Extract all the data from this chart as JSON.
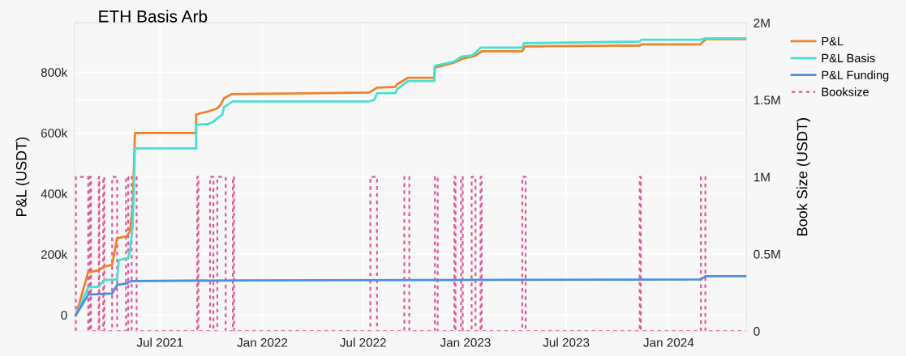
{
  "chart_data": {
    "type": "line",
    "title": "ETH Basis Arb",
    "ylabel": "P&L (USDT)",
    "y2label": "Book Size (USDT)",
    "xlim": [
      "2021-01-28",
      "2024-05-20"
    ],
    "xticks": [
      {
        "value": "2021-07-01",
        "label": "Jul 2021"
      },
      {
        "value": "2022-01-01",
        "label": "Jan 2022"
      },
      {
        "value": "2022-07-01",
        "label": "Jul 2022"
      },
      {
        "value": "2023-01-01",
        "label": "Jan 2023"
      },
      {
        "value": "2023-07-01",
        "label": "Jul 2023"
      },
      {
        "value": "2024-01-01",
        "label": "Jan 2024"
      }
    ],
    "ylim": [
      -53000,
      963000
    ],
    "yticks": [
      {
        "value": 0,
        "label": "0"
      },
      {
        "value": 200000,
        "label": "200k"
      },
      {
        "value": 400000,
        "label": "400k"
      },
      {
        "value": 600000,
        "label": "600k"
      },
      {
        "value": 800000,
        "label": "800k"
      }
    ],
    "y2lim": [
      0,
      2000000
    ],
    "y2ticks": [
      {
        "value": 0,
        "label": "0"
      },
      {
        "value": 500000,
        "label": "0.5M"
      },
      {
        "value": 1000000,
        "label": "1M"
      },
      {
        "value": 1500000,
        "label": "1.5M"
      },
      {
        "value": 2000000,
        "label": "2M"
      }
    ],
    "grid": true,
    "legend": "top right",
    "marker": "none",
    "series": [
      {
        "name": "P&L",
        "color": "#f0812a",
        "line_style": "solid",
        "x": [
          "2021-01-31",
          "2021-02-22",
          "2021-03-13",
          "2021-03-23",
          "2021-04-06",
          "2021-04-15",
          "2021-05-02",
          "2021-05-08",
          "2021-05-13",
          "2021-05-17",
          "2021-09-04",
          "2021-09-04",
          "2021-09-28",
          "2021-10-11",
          "2021-10-18",
          "2021-10-24",
          "2021-11-07",
          "2022-07-12",
          "2022-07-26",
          "2022-08-28",
          "2022-08-31",
          "2022-09-20",
          "2022-11-06",
          "2022-11-07",
          "2022-12-12",
          "2022-12-27",
          "2023-01-12",
          "2023-01-19",
          "2023-01-30",
          "2023-04-13",
          "2023-04-18",
          "2023-11-10",
          "2023-11-13",
          "2024-02-27",
          "2024-03-08",
          "2024-05-18"
        ],
        "values": [
          0,
          141000,
          147000,
          160000,
          165000,
          253000,
          259000,
          275000,
          357000,
          600000,
          600000,
          661000,
          672000,
          680000,
          693000,
          714000,
          728000,
          733000,
          749000,
          752000,
          760000,
          782000,
          782000,
          815000,
          832000,
          845000,
          851000,
          855000,
          869000,
          869000,
          885000,
          888000,
          892000,
          892000,
          909000,
          909000
        ]
      },
      {
        "name": "P&L Basis",
        "color": "#48e0d0",
        "line_style": "solid",
        "x": [
          "2021-01-31",
          "2021-02-22",
          "2021-03-13",
          "2021-03-23",
          "2021-04-15",
          "2021-04-18",
          "2021-05-05",
          "2021-05-08",
          "2021-05-13",
          "2021-05-17",
          "2021-09-04",
          "2021-09-04",
          "2021-09-25",
          "2021-10-05",
          "2021-10-14",
          "2021-10-21",
          "2021-10-24",
          "2021-11-09",
          "2022-07-12",
          "2022-07-21",
          "2022-07-26",
          "2022-08-28",
          "2022-08-31",
          "2022-09-20",
          "2022-11-06",
          "2022-11-07",
          "2022-12-12",
          "2022-12-24",
          "2023-01-12",
          "2023-01-19",
          "2023-01-28",
          "2023-04-13",
          "2023-04-16",
          "2023-11-10",
          "2023-11-13",
          "2024-02-27",
          "2024-03-08",
          "2024-05-18"
        ],
        "values": [
          0,
          91000,
          93000,
          115000,
          117000,
          181000,
          187000,
          213000,
          291000,
          549000,
          549000,
          627000,
          629000,
          637000,
          651000,
          661000,
          685000,
          704000,
          704000,
          709000,
          731000,
          731000,
          744000,
          771000,
          771000,
          821000,
          835000,
          851000,
          855000,
          864000,
          881000,
          881000,
          896000,
          901000,
          907000,
          907000,
          912000,
          912000
        ]
      },
      {
        "name": "P&L Funding",
        "color": "#4a90e2",
        "line_style": "solid",
        "x": [
          "2021-01-31",
          "2021-02-22",
          "2021-04-06",
          "2021-04-15",
          "2021-05-02",
          "2021-05-11",
          "2021-11-09",
          "2024-02-27",
          "2024-03-08",
          "2024-05-18"
        ],
        "values": [
          0,
          67000,
          71000,
          99000,
          104000,
          112000,
          114000,
          117000,
          128000,
          128000
        ]
      },
      {
        "name": "Booksize",
        "color": "#e05a9a",
        "line_style": "dotted",
        "axis": "y2",
        "x": [
          "2021-01-31",
          "2021-01-31",
          "2021-02-22",
          "2021-02-22",
          "2021-02-25",
          "2021-02-25",
          "2021-02-27",
          "2021-02-27",
          "2021-03-13",
          "2021-03-13",
          "2021-03-14",
          "2021-03-14",
          "2021-03-21",
          "2021-03-21",
          "2021-03-23",
          "2021-03-23",
          "2021-04-06",
          "2021-04-06",
          "2021-04-15",
          "2021-04-15",
          "2021-05-01",
          "2021-05-01",
          "2021-05-05",
          "2021-05-05",
          "2021-05-11",
          "2021-05-11",
          "2021-05-20",
          "2021-05-20",
          "2021-09-06",
          "2021-09-06",
          "2021-09-08",
          "2021-09-08",
          "2021-09-29",
          "2021-09-29",
          "2021-10-05",
          "2021-10-05",
          "2021-10-12",
          "2021-10-12",
          "2021-10-27",
          "2021-10-27",
          "2021-11-09",
          "2021-11-09",
          "2021-11-11",
          "2021-11-11",
          "2022-07-14",
          "2022-07-14",
          "2022-07-26",
          "2022-07-26",
          "2022-09-13",
          "2022-09-13",
          "2022-09-22",
          "2022-09-22",
          "2022-11-07",
          "2022-11-07",
          "2022-11-12",
          "2022-11-12",
          "2022-12-12",
          "2022-12-12",
          "2022-12-14",
          "2022-12-14",
          "2022-12-24",
          "2022-12-24",
          "2022-12-27",
          "2022-12-27",
          "2023-01-12",
          "2023-01-12",
          "2023-01-19",
          "2023-01-19",
          "2023-01-28",
          "2023-01-28",
          "2023-01-30",
          "2023-01-30",
          "2023-04-13",
          "2023-04-13",
          "2023-04-19",
          "2023-04-19",
          "2023-11-10",
          "2023-11-10",
          "2023-11-12",
          "2023-11-12",
          "2024-02-28",
          "2024-02-28",
          "2024-03-07",
          "2024-03-07",
          "2024-05-18"
        ],
        "values": [
          0,
          1000000,
          1000000,
          0,
          0,
          1000000,
          1000000,
          0,
          0,
          1000000,
          1000000,
          0,
          0,
          1000000,
          1000000,
          0,
          0,
          1000000,
          1000000,
          0,
          0,
          1000000,
          1000000,
          0,
          0,
          1000000,
          1000000,
          0,
          0,
          1000000,
          1000000,
          0,
          0,
          1000000,
          1000000,
          0,
          0,
          1000000,
          1000000,
          0,
          0,
          1000000,
          1000000,
          0,
          0,
          1000000,
          1000000,
          0,
          0,
          1000000,
          1000000,
          0,
          0,
          1000000,
          1000000,
          0,
          0,
          1000000,
          1000000,
          0,
          0,
          1000000,
          1000000,
          0,
          0,
          1000000,
          1000000,
          0,
          0,
          1000000,
          1000000,
          0,
          0,
          1000000,
          1000000,
          0,
          0,
          1000000,
          1000000,
          0,
          0,
          1000000,
          1000000,
          0,
          0
        ]
      }
    ]
  }
}
